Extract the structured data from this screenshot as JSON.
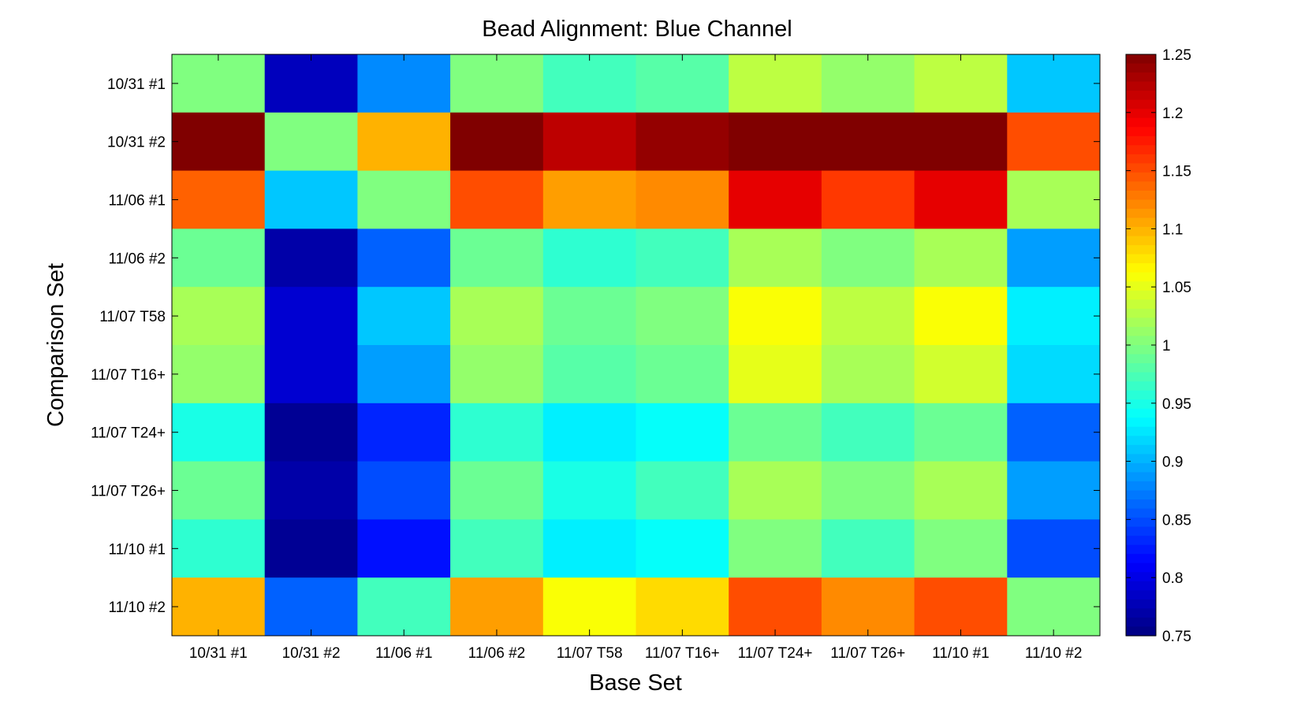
{
  "chart_data": {
    "type": "heatmap",
    "title": "Bead Alignment: Blue Channel",
    "xlabel": "Base Set",
    "ylabel": "Comparison Set",
    "x_categories": [
      "10/31 #1",
      "10/31 #2",
      "11/06 #1",
      "11/06 #2",
      "11/07 T58",
      "11/07 T16+",
      "11/07 T24+",
      "11/07 T26+",
      "11/10 #1",
      "11/10 #2"
    ],
    "y_categories": [
      "10/31 #1",
      "10/31 #2",
      "11/06 #1",
      "11/06 #2",
      "11/07 T58",
      "11/07 T16+",
      "11/07 T24+",
      "11/07 T26+",
      "11/10 #1",
      "11/10 #2"
    ],
    "values": [
      [
        1.0,
        0.78,
        0.88,
        1.0,
        0.97,
        0.98,
        1.03,
        1.01,
        1.03,
        0.91
      ],
      [
        1.25,
        1.0,
        1.1,
        1.25,
        1.22,
        1.24,
        1.25,
        1.25,
        1.25,
        1.15
      ],
      [
        1.14,
        0.91,
        1.0,
        1.15,
        1.11,
        1.12,
        1.2,
        1.16,
        1.2,
        1.02
      ],
      [
        0.99,
        0.77,
        0.86,
        0.99,
        0.96,
        0.97,
        1.02,
        1.0,
        1.02,
        0.89
      ],
      [
        1.02,
        0.79,
        0.91,
        1.02,
        0.99,
        1.0,
        1.06,
        1.03,
        1.06,
        0.93
      ],
      [
        1.01,
        0.79,
        0.89,
        1.01,
        0.98,
        0.99,
        1.05,
        1.02,
        1.04,
        0.92
      ],
      [
        0.95,
        0.76,
        0.83,
        0.96,
        0.93,
        0.94,
        0.99,
        0.97,
        0.99,
        0.86
      ],
      [
        0.99,
        0.77,
        0.85,
        0.99,
        0.95,
        0.97,
        1.02,
        1.0,
        1.02,
        0.89
      ],
      [
        0.96,
        0.76,
        0.82,
        0.97,
        0.93,
        0.94,
        1.0,
        0.97,
        1.0,
        0.85
      ],
      [
        1.1,
        0.86,
        0.97,
        1.11,
        1.06,
        1.08,
        1.15,
        1.12,
        1.15,
        1.0
      ]
    ],
    "colorscale": "jet",
    "vmin": 0.75,
    "vmax": 1.25,
    "colorbar_ticks": [
      0.75,
      0.8,
      0.85,
      0.9,
      0.95,
      1,
      1.05,
      1.1,
      1.15,
      1.2,
      1.25
    ],
    "colorbar_tick_labels": [
      "0.75",
      "0.8",
      "0.85",
      "0.9",
      "0.95",
      "1",
      "1.05",
      "1.1",
      "1.15",
      "1.2",
      "1.25"
    ],
    "colorbar_position": "right"
  }
}
